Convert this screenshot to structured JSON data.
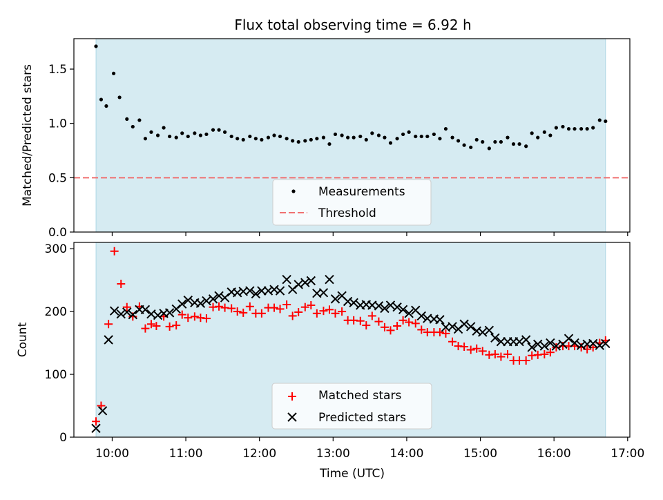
{
  "chart_data": [
    {
      "type": "scatter",
      "title": "Flux total observing time = 6.92 h",
      "ylabel": "Matched/Predicted stars",
      "xlabel": "",
      "ylim": [
        0,
        1.78
      ],
      "yticks": [
        0.0,
        0.5,
        1.0,
        1.5
      ],
      "ytick_labels": [
        "0.0",
        "0.5",
        "1.0",
        "1.5"
      ],
      "xlim_hours": [
        9.48,
        17.03
      ],
      "xticks_hours": [
        10,
        11,
        12,
        13,
        14,
        15,
        16,
        17
      ],
      "shaded_span_hours": [
        9.78,
        16.7
      ],
      "threshold": 0.5,
      "legend_position": "bottom-center",
      "legend": [
        "Measurements",
        "Threshold"
      ],
      "series": [
        {
          "name": "Measurements",
          "x": [
            9.78,
            9.85,
            9.92,
            10.02,
            10.1,
            10.2,
            10.28,
            10.37,
            10.45,
            10.53,
            10.62,
            10.7,
            10.78,
            10.87,
            10.95,
            11.03,
            11.12,
            11.2,
            11.28,
            11.37,
            11.45,
            11.53,
            11.62,
            11.7,
            11.78,
            11.87,
            11.95,
            12.03,
            12.12,
            12.2,
            12.28,
            12.37,
            12.45,
            12.53,
            12.62,
            12.7,
            12.78,
            12.87,
            12.95,
            13.03,
            13.12,
            13.2,
            13.28,
            13.37,
            13.45,
            13.53,
            13.62,
            13.7,
            13.78,
            13.87,
            13.95,
            14.03,
            14.12,
            14.2,
            14.28,
            14.37,
            14.45,
            14.53,
            14.62,
            14.7,
            14.78,
            14.87,
            14.95,
            15.03,
            15.12,
            15.2,
            15.28,
            15.37,
            15.45,
            15.53,
            15.62,
            15.7,
            15.78,
            15.87,
            15.95,
            16.03,
            16.12,
            16.2,
            16.28,
            16.37,
            16.45,
            16.53,
            16.62,
            16.7
          ],
          "y": [
            1.71,
            1.22,
            1.16,
            1.46,
            1.24,
            1.04,
            0.97,
            1.03,
            0.86,
            0.92,
            0.89,
            0.96,
            0.88,
            0.87,
            0.91,
            0.88,
            0.91,
            0.89,
            0.9,
            0.94,
            0.94,
            0.92,
            0.88,
            0.86,
            0.85,
            0.88,
            0.86,
            0.85,
            0.87,
            0.89,
            0.88,
            0.86,
            0.84,
            0.83,
            0.84,
            0.85,
            0.86,
            0.87,
            0.81,
            0.9,
            0.89,
            0.87,
            0.87,
            0.88,
            0.85,
            0.91,
            0.89,
            0.87,
            0.82,
            0.86,
            0.9,
            0.92,
            0.88,
            0.88,
            0.88,
            0.9,
            0.86,
            0.95,
            0.87,
            0.84,
            0.8,
            0.78,
            0.85,
            0.83,
            0.77,
            0.83,
            0.83,
            0.87,
            0.81,
            0.81,
            0.79,
            0.91,
            0.87,
            0.92,
            0.89,
            0.96,
            0.97,
            0.95,
            0.95,
            0.95,
            0.95,
            0.96,
            1.03,
            1.02
          ]
        }
      ]
    },
    {
      "type": "scatter",
      "title": "",
      "ylabel": "Count",
      "xlabel": "Time (UTC)",
      "ylim": [
        0,
        310
      ],
      "yticks": [
        0,
        100,
        200,
        300
      ],
      "ytick_labels": [
        "0",
        "100",
        "200",
        "300"
      ],
      "xlim_hours": [
        9.48,
        17.03
      ],
      "xticks_hours": [
        10,
        11,
        12,
        13,
        14,
        15,
        16,
        17
      ],
      "xtick_labels": [
        "10:00",
        "11:00",
        "12:00",
        "13:00",
        "14:00",
        "15:00",
        "16:00",
        "17:00"
      ],
      "shaded_span_hours": [
        9.78,
        16.7
      ],
      "legend_position": "bottom-center",
      "legend": [
        "Matched stars",
        "Predicted stars"
      ],
      "series": [
        {
          "name": "Matched stars",
          "x": [
            9.78,
            9.85,
            9.95,
            10.03,
            10.12,
            10.2,
            10.28,
            10.37,
            10.45,
            10.53,
            10.6,
            10.7,
            10.78,
            10.87,
            10.95,
            11.03,
            11.12,
            11.2,
            11.28,
            11.37,
            11.45,
            11.53,
            11.62,
            11.7,
            11.78,
            11.87,
            11.95,
            12.03,
            12.12,
            12.2,
            12.28,
            12.37,
            12.45,
            12.53,
            12.62,
            12.7,
            12.78,
            12.87,
            12.95,
            13.03,
            13.12,
            13.2,
            13.28,
            13.37,
            13.45,
            13.53,
            13.62,
            13.7,
            13.78,
            13.87,
            13.95,
            14.03,
            14.12,
            14.2,
            14.28,
            14.37,
            14.45,
            14.53,
            14.62,
            14.7,
            14.78,
            14.87,
            14.95,
            15.03,
            15.12,
            15.2,
            15.28,
            15.37,
            15.45,
            15.53,
            15.62,
            15.7,
            15.78,
            15.87,
            15.95,
            16.03,
            16.12,
            16.2,
            16.28,
            16.37,
            16.45,
            16.53,
            16.62,
            16.7
          ],
          "y": [
            25,
            50,
            180,
            296,
            244,
            207,
            192,
            208,
            173,
            180,
            177,
            192,
            176,
            178,
            195,
            190,
            192,
            190,
            189,
            207,
            208,
            206,
            205,
            200,
            198,
            208,
            197,
            197,
            206,
            206,
            204,
            211,
            193,
            199,
            207,
            210,
            197,
            201,
            203,
            197,
            200,
            186,
            186,
            185,
            178,
            193,
            184,
            175,
            170,
            177,
            186,
            183,
            181,
            171,
            167,
            167,
            167,
            165,
            152,
            145,
            144,
            139,
            141,
            137,
            131,
            132,
            128,
            132,
            122,
            122,
            122,
            130,
            131,
            132,
            135,
            143,
            145,
            145,
            145,
            143,
            140,
            143,
            150,
            154
          ]
        },
        {
          "name": "Predicted stars",
          "x": [
            9.78,
            9.87,
            9.95,
            10.03,
            10.12,
            10.2,
            10.28,
            10.37,
            10.45,
            10.53,
            10.62,
            10.7,
            10.78,
            10.87,
            10.95,
            11.03,
            11.12,
            11.2,
            11.28,
            11.37,
            11.45,
            11.53,
            11.62,
            11.7,
            11.78,
            11.87,
            11.95,
            12.03,
            12.12,
            12.2,
            12.28,
            12.37,
            12.45,
            12.53,
            12.62,
            12.7,
            12.78,
            12.87,
            12.95,
            13.03,
            13.12,
            13.2,
            13.28,
            13.37,
            13.45,
            13.53,
            13.62,
            13.7,
            13.78,
            13.87,
            13.95,
            14.03,
            14.12,
            14.2,
            14.28,
            14.37,
            14.45,
            14.53,
            14.62,
            14.7,
            14.78,
            14.87,
            14.95,
            15.03,
            15.12,
            15.2,
            15.28,
            15.37,
            15.45,
            15.53,
            15.62,
            15.7,
            15.78,
            15.87,
            15.95,
            16.03,
            16.12,
            16.2,
            16.28,
            16.37,
            16.45,
            16.53,
            16.62,
            16.7
          ],
          "y": [
            14,
            42,
            155,
            201,
            196,
            199,
            195,
            203,
            203,
            196,
            194,
            197,
            198,
            204,
            212,
            218,
            214,
            213,
            217,
            220,
            225,
            222,
            231,
            230,
            232,
            233,
            228,
            233,
            233,
            235,
            233,
            251,
            235,
            243,
            246,
            249,
            229,
            230,
            251,
            220,
            225,
            216,
            214,
            210,
            211,
            210,
            209,
            205,
            210,
            207,
            203,
            197,
            202,
            193,
            189,
            188,
            187,
            175,
            176,
            172,
            180,
            176,
            169,
            167,
            170,
            158,
            152,
            152,
            152,
            152,
            155,
            143,
            148,
            145,
            150,
            145,
            148,
            157,
            150,
            146,
            148,
            149,
            146,
            149
          ]
        }
      ]
    }
  ]
}
